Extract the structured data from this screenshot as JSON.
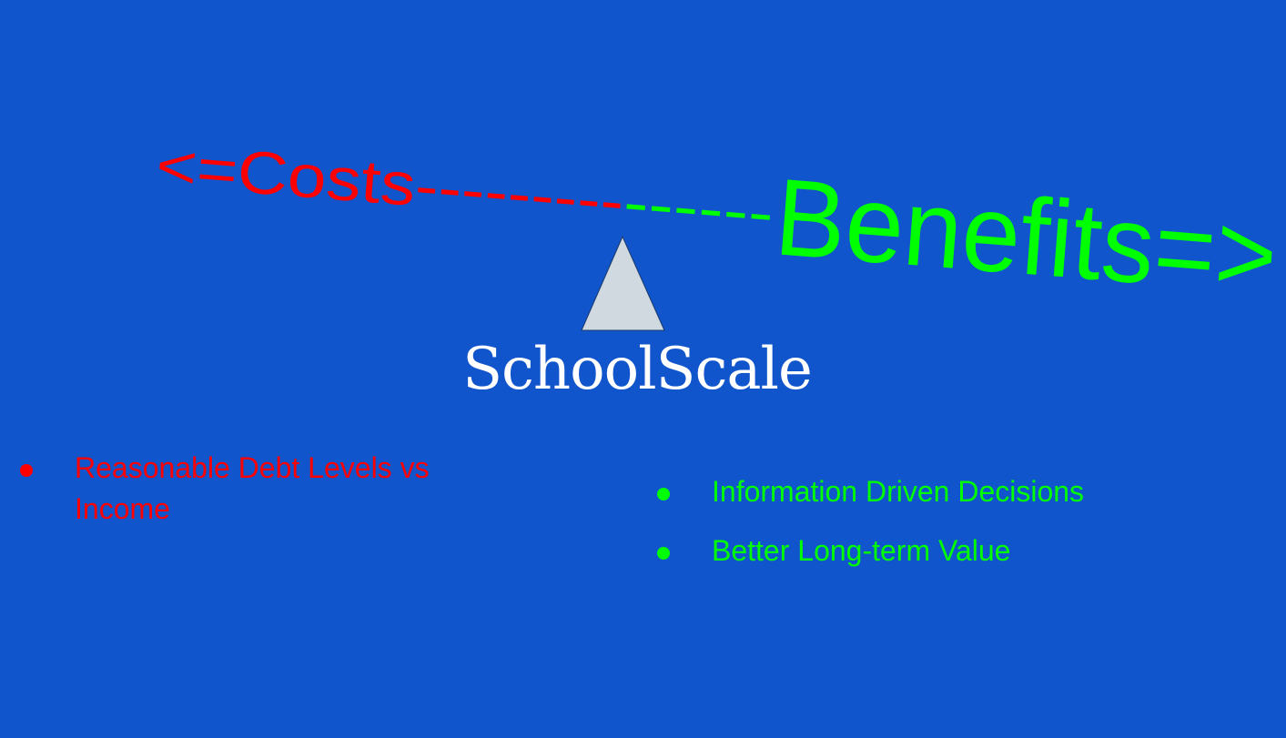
{
  "slide": {
    "title": "SchoolScale",
    "background_color": "#1155cc",
    "scale": {
      "costs_label": "<=Costs",
      "costs_dashes": "---------",
      "benefits_dashes": "------",
      "benefits_label": "Benefits=>",
      "costs_color": "#ff0000",
      "benefits_color": "#00ff00",
      "fulcrum_color": "#d0d9e0",
      "fulcrum_icon": "triangle-fulcrum-icon"
    },
    "costs": {
      "color": "#ff0000",
      "items": [
        {
          "label": "Reasonable Debt Levels vs Income"
        }
      ]
    },
    "benefits": {
      "color": "#00ff00",
      "items": [
        {
          "label": "Information Driven Decisions"
        },
        {
          "label": "Better Long-term Value"
        }
      ]
    }
  }
}
